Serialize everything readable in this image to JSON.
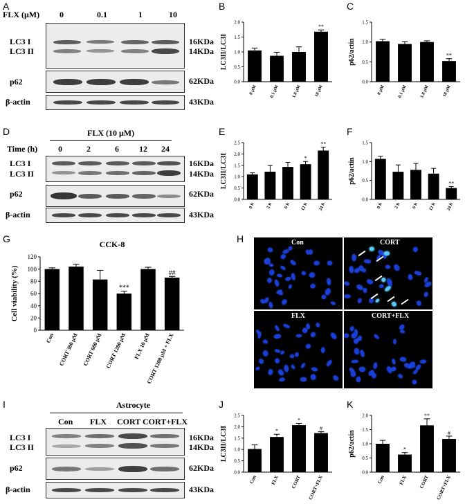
{
  "panels": {
    "A": {
      "label": "A",
      "treatment_label": "FLX (μM)",
      "lanes": [
        "0",
        "0.1",
        "1",
        "10"
      ],
      "markers": [
        "LC3 I",
        "LC3 II",
        "p62",
        "β-actin"
      ],
      "sizes": [
        "16KDa",
        "14KDa",
        "62KDa",
        "43KDa"
      ]
    },
    "D": {
      "label": "D",
      "header": "FLX (10 μM)",
      "time_label": "Time (h)",
      "lanes": [
        "0",
        "2",
        "6",
        "12",
        "24"
      ],
      "markers": [
        "LC3 I",
        "LC3 II",
        "p62",
        "β-actin"
      ],
      "sizes": [
        "16KDa",
        "14KDa",
        "62KDa",
        "43KDa"
      ]
    },
    "H": {
      "label": "H",
      "images": [
        "Con",
        "CORT",
        "FLX",
        "CORT+FLX"
      ]
    },
    "I": {
      "label": "I",
      "header": "Astrocyte",
      "lanes": [
        "Con",
        "FLX",
        "CORT",
        "CORT+FLX"
      ],
      "markers": [
        "LC3 I",
        "LC3 II",
        "p62",
        "β-actin"
      ],
      "sizes": [
        "16KDa",
        "14KDa",
        "62KDa",
        "43KDa"
      ]
    }
  },
  "colors": {
    "bar": "#000000",
    "fluorescence": "#1a3fd8",
    "background": "#ffffff"
  },
  "chart_data": [
    {
      "panel": "B",
      "type": "bar",
      "categories": [
        "0 μM",
        "0.1 μM",
        "1.0 μM",
        "10 μM"
      ],
      "values": [
        1.05,
        0.87,
        1.0,
        1.68
      ],
      "errors": [
        0.08,
        0.12,
        0.17,
        0.06
      ],
      "annotations": [
        "",
        "",
        "",
        "**"
      ],
      "ylabel": "LC3II/LC3I",
      "ylim": [
        0,
        2.0
      ],
      "yticks": [
        "0.0",
        "0.5",
        "1.0",
        "1.5",
        "2.0"
      ]
    },
    {
      "panel": "C",
      "type": "bar",
      "categories": [
        "0 μM",
        "0.1 μM",
        "1.0 μM",
        "10 μM"
      ],
      "values": [
        1.02,
        0.95,
        1.0,
        0.52
      ],
      "errors": [
        0.05,
        0.06,
        0.03,
        0.06
      ],
      "annotations": [
        "",
        "",
        "",
        "**"
      ],
      "ylabel": "p62/actin",
      "ylim": [
        0,
        1.5
      ],
      "yticks": [
        "0.0",
        "0.5",
        "1.0",
        "1.5"
      ]
    },
    {
      "panel": "E",
      "type": "bar",
      "categories": [
        "0 h",
        "2 h",
        "6 h",
        "12 h",
        "24 h"
      ],
      "values": [
        1.1,
        1.22,
        1.43,
        1.55,
        2.15
      ],
      "errors": [
        0.07,
        0.27,
        0.2,
        0.12,
        0.15
      ],
      "annotations": [
        "",
        "",
        "",
        "*",
        "**"
      ],
      "ylabel": "LC3II/LC3I",
      "ylim": [
        0,
        2.5
      ],
      "yticks": [
        "0.0",
        "0.5",
        "1.0",
        "1.5",
        "2.0",
        "2.5"
      ]
    },
    {
      "panel": "F",
      "type": "bar",
      "categories": [
        "0 h",
        "2 h",
        "6 h",
        "12 h",
        "24 h"
      ],
      "values": [
        1.07,
        0.73,
        0.78,
        0.68,
        0.3
      ],
      "errors": [
        0.07,
        0.18,
        0.17,
        0.14,
        0.04
      ],
      "annotations": [
        "",
        "",
        "",
        "",
        "**"
      ],
      "ylabel": "p62/actin",
      "ylim": [
        0,
        1.5
      ],
      "yticks": [
        "0.0",
        "0.5",
        "1.0",
        "1.5"
      ]
    },
    {
      "panel": "G",
      "type": "bar",
      "title": "CCK-8",
      "categories": [
        "Con",
        "CORT 300 μM",
        "CORT 600 μM",
        "CORT 1200 μM",
        "FLX 10 μM",
        "CORT 1200 μM + FLX"
      ],
      "values": [
        100,
        104,
        83,
        60,
        100,
        86
      ],
      "errors": [
        2,
        4,
        15,
        4,
        3,
        2
      ],
      "annotations": [
        "",
        "",
        "",
        "***",
        "",
        "##"
      ],
      "ylabel": "Cell viability (%)",
      "ylim": [
        0,
        120
      ],
      "yticks": [
        "0",
        "20",
        "40",
        "60",
        "80",
        "100",
        "120"
      ]
    },
    {
      "panel": "J",
      "type": "bar",
      "categories": [
        "Con",
        "FLX",
        "CORT",
        "CORT+FLX"
      ],
      "values": [
        1.02,
        1.55,
        2.07,
        1.72
      ],
      "errors": [
        0.18,
        0.12,
        0.08,
        0.06
      ],
      "annotations": [
        "",
        "*",
        "*",
        "#"
      ],
      "ylabel": "LC3II/LC3I",
      "ylim": [
        0,
        2.5
      ],
      "yticks": [
        "0.0",
        "0.5",
        "1.0",
        "1.5",
        "2.0",
        "2.5"
      ]
    },
    {
      "panel": "K",
      "type": "bar",
      "categories": [
        "Con",
        "FLX",
        "CORT",
        "CORT+FLX"
      ],
      "values": [
        1.0,
        0.62,
        1.65,
        1.17
      ],
      "errors": [
        0.12,
        0.07,
        0.23,
        0.1
      ],
      "annotations": [
        "",
        "*",
        "**",
        "#"
      ],
      "ylabel": "p62/actin",
      "ylim": [
        0,
        2.0
      ],
      "yticks": [
        "0.0",
        "0.5",
        "1.0",
        "1.5",
        "2.0"
      ]
    }
  ]
}
